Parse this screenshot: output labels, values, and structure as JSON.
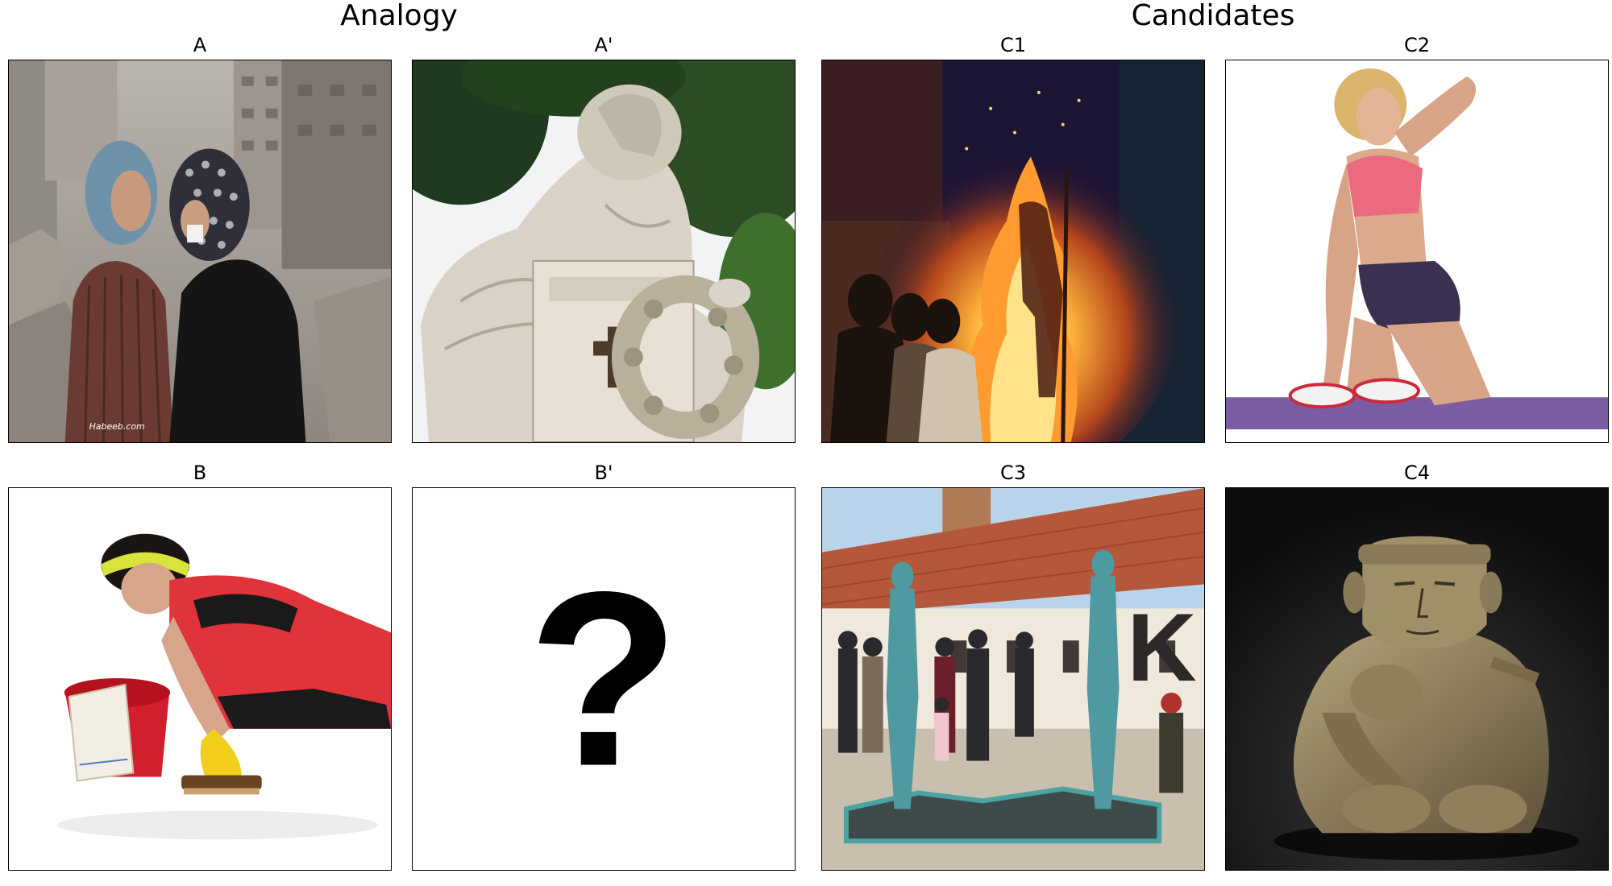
{
  "headers": {
    "analogy": "Analogy",
    "candidates": "Candidates"
  },
  "panels": {
    "A": {
      "label": "A",
      "watermark": "Habeeb.com"
    },
    "A_prime": {
      "label": "A'"
    },
    "B": {
      "label": "B"
    },
    "B_prime": {
      "label": "B'",
      "placeholder_symbol": "?"
    },
    "C1": {
      "label": "C1"
    },
    "C2": {
      "label": "C2"
    },
    "C3": {
      "label": "C3",
      "sign_letter": "K"
    },
    "C4": {
      "label": "C4"
    }
  }
}
